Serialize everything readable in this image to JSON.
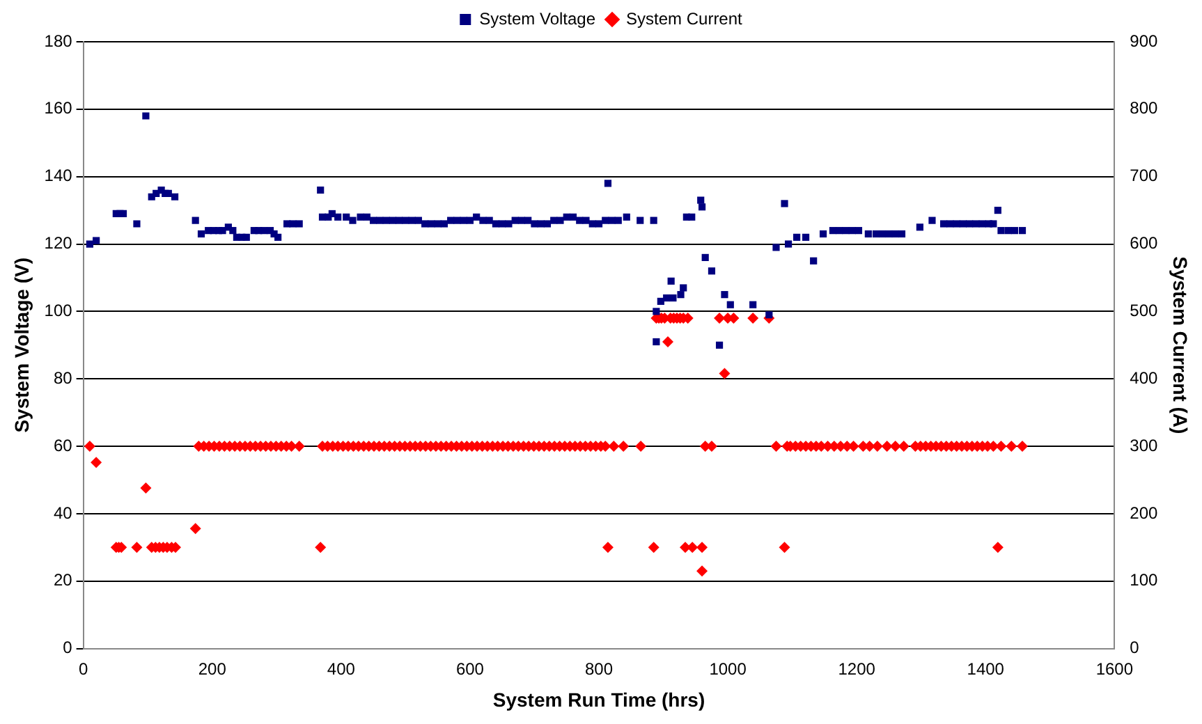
{
  "chart_data": {
    "type": "scatter",
    "xlabel": "System Run Time (hrs)",
    "ylabel": "System Voltage (V)",
    "y2label": "System Current (A)",
    "xlim": [
      0,
      1600
    ],
    "xticks": [
      0,
      200,
      400,
      600,
      800,
      1000,
      1200,
      1400,
      1600
    ],
    "ylim": [
      0,
      180
    ],
    "yticks": [
      0,
      20,
      40,
      60,
      80,
      100,
      120,
      140,
      160,
      180
    ],
    "y2lim": [
      0,
      900
    ],
    "y2ticks": [
      0,
      100,
      200,
      300,
      400,
      500,
      600,
      700,
      800,
      900
    ],
    "grid": "y",
    "legend": "top",
    "series": [
      {
        "name": "System Voltage",
        "color": "#000080",
        "marker": "square",
        "axis": "y",
        "x": [
          10,
          20,
          51,
          57,
          62,
          83,
          97,
          106,
          113,
          121,
          127,
          132,
          142,
          174,
          183,
          194,
          202,
          210,
          216,
          225,
          232,
          238,
          246,
          253,
          265,
          272,
          280,
          290,
          296,
          302,
          316,
          325,
          335,
          368,
          371,
          380,
          386,
          395,
          408,
          418,
          430,
          440,
          450,
          460,
          470,
          480,
          490,
          500,
          510,
          520,
          530,
          540,
          550,
          560,
          570,
          580,
          590,
          600,
          610,
          620,
          630,
          640,
          650,
          660,
          670,
          680,
          690,
          700,
          710,
          720,
          730,
          740,
          750,
          760,
          770,
          780,
          790,
          800,
          810,
          814,
          820,
          830,
          843,
          864,
          885,
          889,
          889,
          896,
          905,
          912,
          915,
          927,
          931,
          936,
          944,
          958,
          960,
          965,
          975,
          987,
          995,
          1004,
          1039,
          1064,
          1075,
          1088,
          1094,
          1107,
          1121,
          1133,
          1148,
          1163,
          1173,
          1183,
          1193,
          1203,
          1218,
          1230,
          1240,
          1250,
          1260,
          1270,
          1298,
          1317,
          1335,
          1345,
          1355,
          1365,
          1375,
          1385,
          1395,
          1405,
          1412,
          1419,
          1424,
          1435,
          1445,
          1457
        ],
        "values": [
          120,
          121,
          129,
          129,
          129,
          126,
          158,
          134,
          135,
          136,
          135,
          135,
          134,
          127,
          123,
          124,
          124,
          124,
          124,
          125,
          124,
          122,
          122,
          122,
          124,
          124,
          124,
          124,
          123,
          122,
          126,
          126,
          126,
          136,
          128,
          128,
          129,
          128,
          128,
          127,
          128,
          128,
          127,
          127,
          127,
          127,
          127,
          127,
          127,
          127,
          126,
          126,
          126,
          126,
          127,
          127,
          127,
          127,
          128,
          127,
          127,
          126,
          126,
          126,
          127,
          127,
          127,
          126,
          126,
          126,
          127,
          127,
          128,
          128,
          127,
          127,
          126,
          126,
          127,
          138,
          127,
          127,
          128,
          127,
          127,
          100,
          91,
          103,
          104,
          109,
          104,
          105,
          107,
          128,
          128,
          133,
          131,
          116,
          112,
          90,
          105,
          102,
          102,
          99,
          119,
          132,
          120,
          122,
          122,
          115,
          123,
          124,
          124,
          124,
          124,
          124,
          123,
          123,
          123,
          123,
          123,
          123,
          125,
          127,
          126,
          126,
          126,
          126,
          126,
          126,
          126,
          126,
          126,
          130,
          124,
          124,
          124,
          124
        ]
      },
      {
        "name": "System Current",
        "color": "#ff0000",
        "marker": "diamond",
        "axis": "y2",
        "x": [
          10,
          20,
          51,
          55,
          59,
          83,
          97,
          106,
          112,
          118,
          124,
          130,
          137,
          143,
          174,
          179,
          187,
          195,
          203,
          211,
          219,
          227,
          235,
          243,
          251,
          259,
          267,
          275,
          283,
          291,
          299,
          307,
          315,
          323,
          335,
          368,
          371,
          379,
          387,
          395,
          403,
          411,
          419,
          427,
          435,
          443,
          451,
          459,
          467,
          475,
          483,
          491,
          499,
          507,
          515,
          523,
          531,
          539,
          547,
          555,
          563,
          571,
          579,
          587,
          595,
          603,
          611,
          619,
          627,
          635,
          643,
          651,
          659,
          667,
          675,
          683,
          691,
          699,
          707,
          715,
          723,
          731,
          739,
          747,
          755,
          763,
          771,
          779,
          787,
          795,
          803,
          810,
          814,
          823,
          838,
          865,
          885,
          889,
          893,
          897,
          902,
          907,
          911,
          916,
          921,
          926,
          931,
          934,
          938,
          945,
          960,
          960,
          965,
          975,
          987,
          995,
          1000,
          1009,
          1039,
          1064,
          1075,
          1088,
          1092,
          1097,
          1105,
          1113,
          1121,
          1129,
          1137,
          1145,
          1155,
          1165,
          1175,
          1185,
          1195,
          1210,
          1220,
          1232,
          1247,
          1260,
          1273,
          1291,
          1299,
          1307,
          1315,
          1323,
          1331,
          1339,
          1347,
          1355,
          1363,
          1371,
          1379,
          1387,
          1395,
          1403,
          1412,
          1419,
          1424,
          1440,
          1457
        ],
        "values": [
          300,
          276,
          150,
          150,
          150,
          150,
          238,
          150,
          150,
          150,
          150,
          150,
          150,
          150,
          178,
          300,
          300,
          300,
          300,
          300,
          300,
          300,
          300,
          300,
          300,
          300,
          300,
          300,
          300,
          300,
          300,
          300,
          300,
          300,
          300,
          150,
          300,
          300,
          300,
          300,
          300,
          300,
          300,
          300,
          300,
          300,
          300,
          300,
          300,
          300,
          300,
          300,
          300,
          300,
          300,
          300,
          300,
          300,
          300,
          300,
          300,
          300,
          300,
          300,
          300,
          300,
          300,
          300,
          300,
          300,
          300,
          300,
          300,
          300,
          300,
          300,
          300,
          300,
          300,
          300,
          300,
          300,
          300,
          300,
          300,
          300,
          300,
          300,
          300,
          300,
          300,
          300,
          150,
          300,
          300,
          300,
          150,
          490,
          490,
          490,
          490,
          455,
          490,
          490,
          490,
          490,
          490,
          150,
          490,
          150,
          150,
          115,
          300,
          300,
          490,
          408,
          490,
          490,
          490,
          490,
          300,
          150,
          300,
          300,
          300,
          300,
          300,
          300,
          300,
          300,
          300,
          300,
          300,
          300,
          300,
          300,
          300,
          300,
          300,
          300,
          300,
          300,
          300,
          300,
          300,
          300,
          300,
          300,
          300,
          300,
          300,
          300,
          300,
          300,
          300,
          300,
          300,
          150,
          300,
          300,
          300
        ]
      }
    ]
  }
}
